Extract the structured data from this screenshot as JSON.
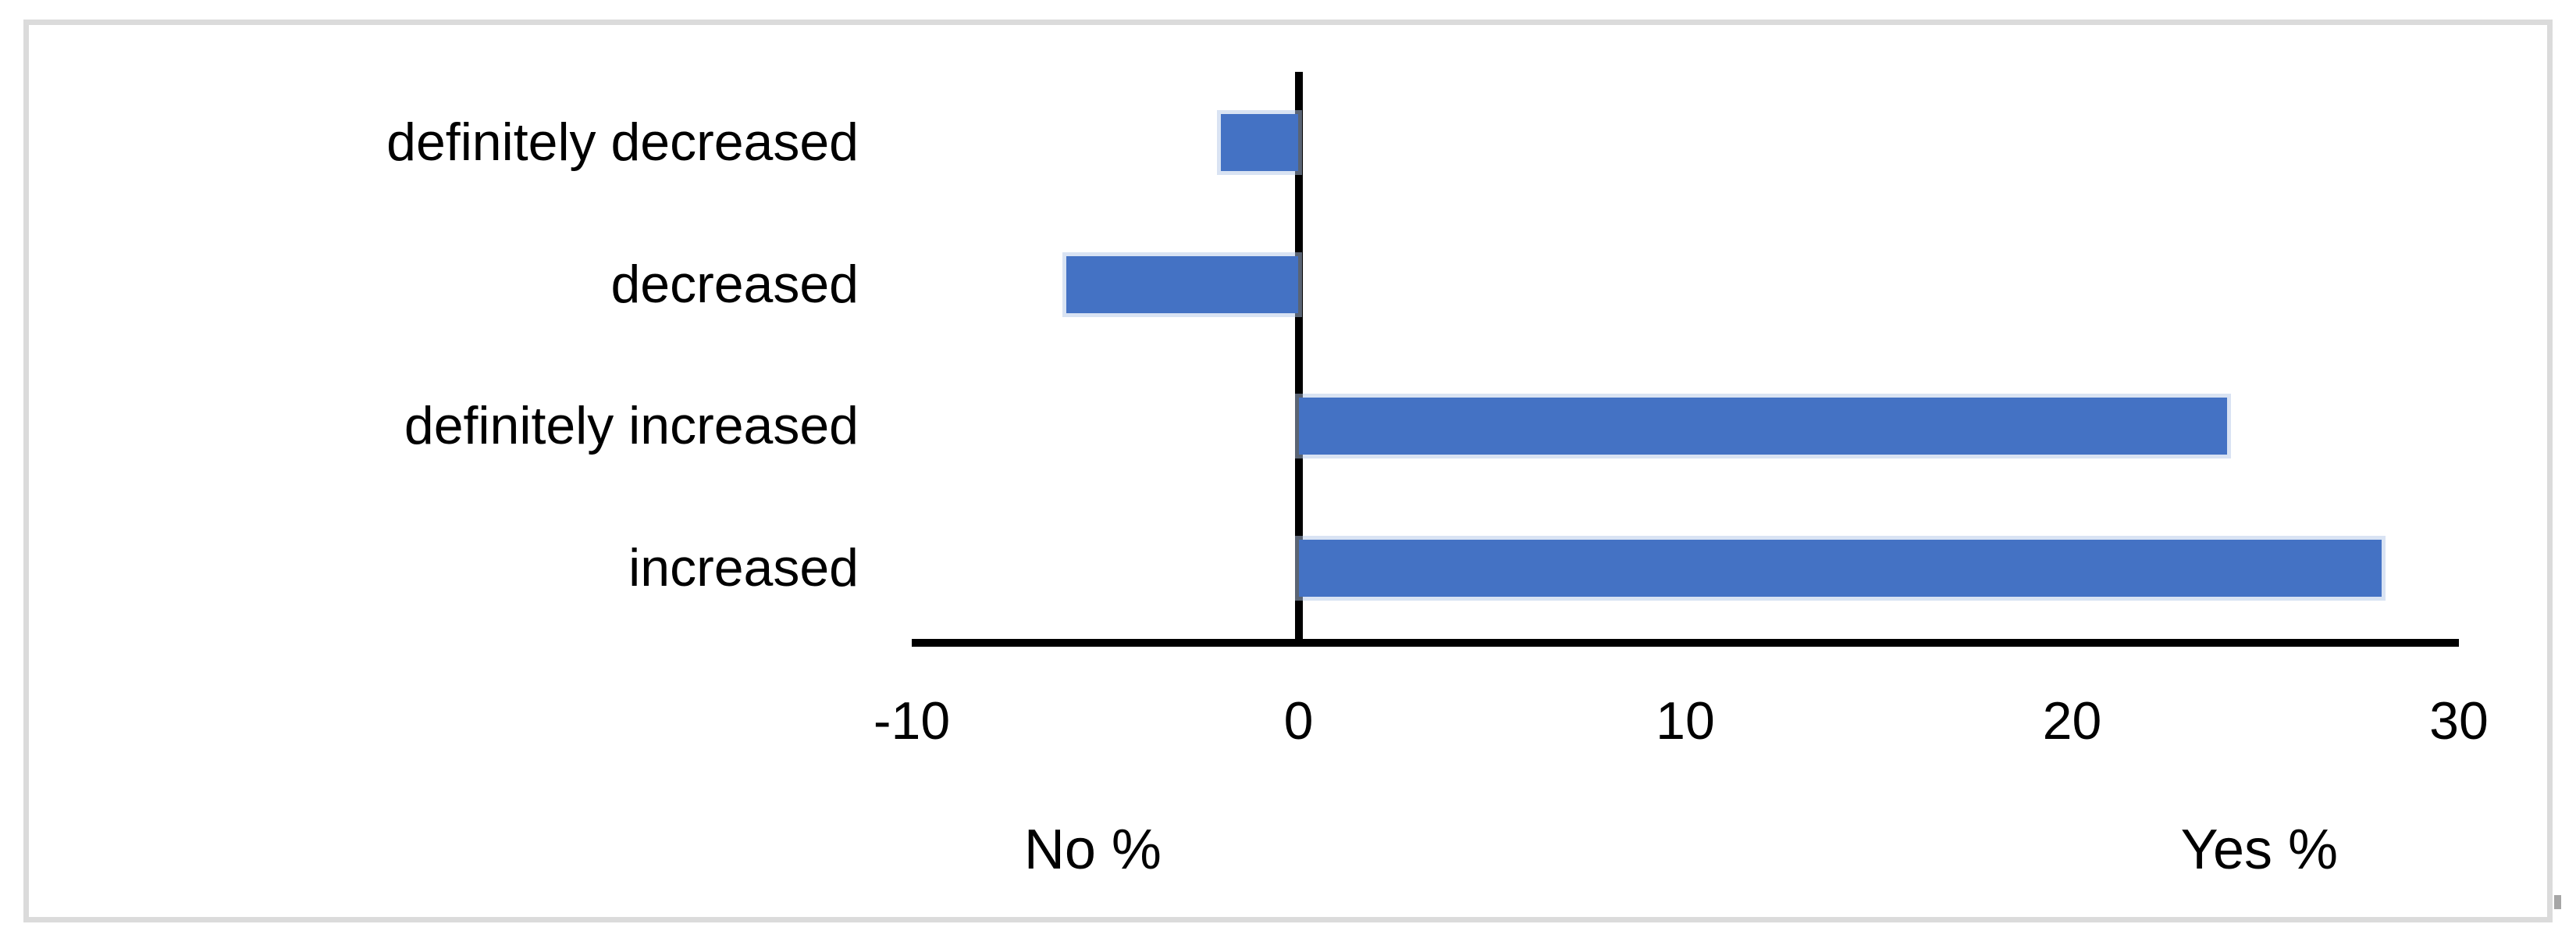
{
  "chart_data": {
    "type": "bar",
    "orientation": "horizontal",
    "title": "",
    "categories": [
      "definitely decreased",
      "decreased",
      "definitely increased",
      "increased"
    ],
    "values": [
      -2,
      -6,
      24,
      28
    ],
    "x_ticks": [
      -10,
      0,
      10,
      20,
      30
    ],
    "xlim": [
      -10,
      30
    ],
    "xlabel_negative": "No %",
    "xlabel_positive": "Yes %",
    "grid": false,
    "legend": false,
    "colors": {
      "bar": "#4472C4",
      "bar_edge": "#B4C7E7",
      "axis": "#000000",
      "text": "#000000",
      "frame": "#DBDBDB",
      "background": "#FFFFFF"
    }
  }
}
